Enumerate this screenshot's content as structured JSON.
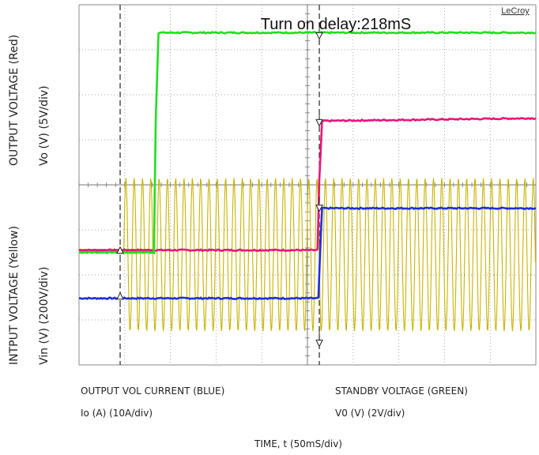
{
  "chart_data": {
    "type": "line",
    "title": "Turn on delay:218mS",
    "brand": "LeCroy",
    "xlabel": "TIME, t (50mS/div)",
    "x_unit": "ms",
    "x_per_div": 50,
    "x_divisions": 10,
    "y_divisions": 8,
    "grid": true,
    "cursor_times_ms": [
      45,
      263
    ],
    "channel_labels": {
      "output_voltage": "OUTPUT VOLTAGE (Red)",
      "output_voltage_scale": "Vo (V) (5V/div)",
      "input_voltage": "INTPUT VOLTAGE (Yellow)",
      "input_voltage_scale": "Vin (V) (200V/div)",
      "output_current": "OUTPUT VOL CURRENT (BLUE)",
      "output_current_scale": "Io (A) (10A/div)",
      "standby_voltage": "STANDBY VOLTAGE (GREEN)",
      "standby_voltage_scale": "V0 (V) (2V/div)"
    },
    "series": [
      {
        "name": "Vin",
        "color": "#c8b400",
        "kind": "sine",
        "start_ms": 49,
        "period_ms": 9.1,
        "center_div": 2.45,
        "amp_div": 1.7
      },
      {
        "name": "Vo",
        "color": "#e8157a",
        "points": [
          [
            0,
            2.55
          ],
          [
            261,
            2.55
          ],
          [
            263,
            4.1
          ],
          [
            266,
            5.42
          ],
          [
            500,
            5.48
          ]
        ]
      },
      {
        "name": "Io",
        "color": "#1f2fd8",
        "points": [
          [
            0,
            1.48
          ],
          [
            262,
            1.48
          ],
          [
            264,
            2.55
          ],
          [
            266,
            3.48
          ],
          [
            500,
            3.48
          ]
        ]
      },
      {
        "name": "V0",
        "color": "#22dd22",
        "points": [
          [
            0,
            2.5
          ],
          [
            82,
            2.5
          ],
          [
            84,
            5.45
          ],
          [
            87,
            7.38
          ],
          [
            500,
            7.38
          ]
        ]
      }
    ],
    "reference_series": [
      {
        "color": "#f07800",
        "points": [
          [
            0,
            2.55
          ],
          [
            80,
            2.55
          ]
        ]
      }
    ]
  }
}
